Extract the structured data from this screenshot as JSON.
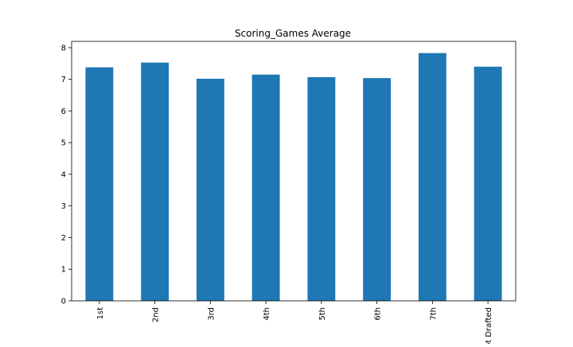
{
  "chart_data": {
    "type": "bar",
    "title": "Scoring_Games Average",
    "xlabel": "",
    "ylabel": "",
    "categories": [
      "1st",
      "2nd",
      "3rd",
      "4th",
      "5th",
      "6th",
      "7th",
      "Not Drafted"
    ],
    "values": [
      7.38,
      7.53,
      7.02,
      7.15,
      7.07,
      7.04,
      7.83,
      7.4
    ],
    "ylim": [
      0,
      8.2
    ],
    "yticks": [
      0,
      1,
      2,
      3,
      4,
      5,
      6,
      7,
      8
    ],
    "bar_color": "#1f77b4",
    "grid": false,
    "legend": "none"
  }
}
